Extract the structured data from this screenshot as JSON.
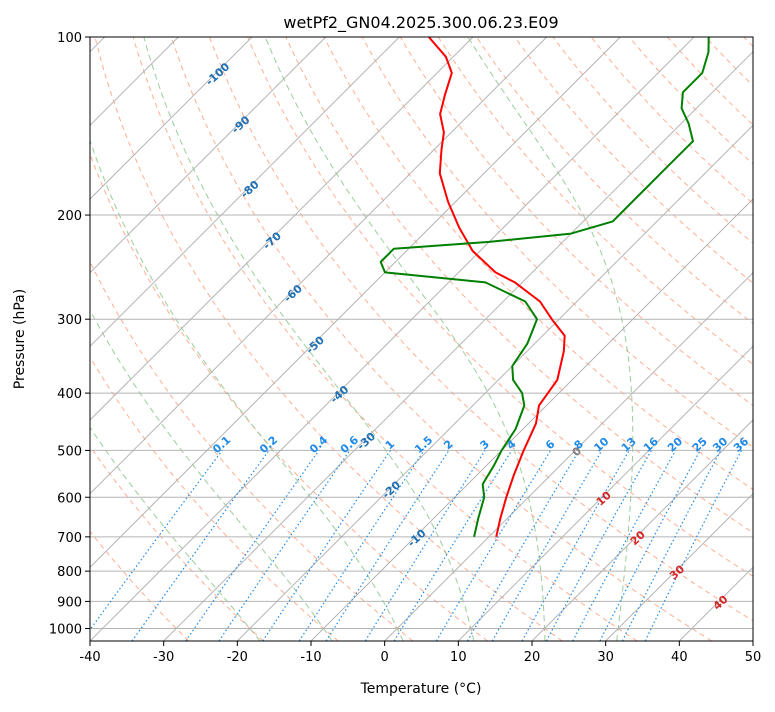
{
  "chart_data": {
    "type": "line",
    "subtype": "skew-t log-p diagram",
    "title": "wetPf2_GN04.2025.300.06.23.E09",
    "xlabel": "Temperature (°C)",
    "ylabel": "Pressure (hPa)",
    "xlim": [
      -40,
      50
    ],
    "ylim": [
      1050,
      100
    ],
    "xticks": [
      "-40",
      "-30",
      "-20",
      "-10",
      "0",
      "10",
      "20",
      "30",
      "40",
      "50"
    ],
    "yticks": [
      "100",
      "200",
      "300",
      "400",
      "500",
      "600",
      "700",
      "800",
      "900",
      "1000"
    ],
    "series": [
      {
        "name": "temperature",
        "color": "#ff0000",
        "points": [
          {
            "p": 700,
            "t": 1
          },
          {
            "p": 650,
            "t": -1
          },
          {
            "p": 600,
            "t": -3
          },
          {
            "p": 550,
            "t": -5
          },
          {
            "p": 500,
            "t": -7
          },
          {
            "p": 450,
            "t": -9
          },
          {
            "p": 420,
            "t": -11
          },
          {
            "p": 380,
            "t": -12
          },
          {
            "p": 340,
            "t": -15
          },
          {
            "p": 320,
            "t": -17
          },
          {
            "p": 300,
            "t": -21
          },
          {
            "p": 280,
            "t": -25
          },
          {
            "p": 260,
            "t": -31
          },
          {
            "p": 250,
            "t": -35
          },
          {
            "p": 230,
            "t": -41
          },
          {
            "p": 210,
            "t": -46
          },
          {
            "p": 190,
            "t": -51
          },
          {
            "p": 170,
            "t": -56
          },
          {
            "p": 155,
            "t": -59
          },
          {
            "p": 145,
            "t": -61
          },
          {
            "p": 135,
            "t": -64
          },
          {
            "p": 125,
            "t": -66
          },
          {
            "p": 115,
            "t": -68
          },
          {
            "p": 108,
            "t": -71
          },
          {
            "p": 100,
            "t": -76
          }
        ]
      },
      {
        "name": "dewpoint",
        "color": "#008000",
        "points": [
          {
            "p": 700,
            "t": -2
          },
          {
            "p": 650,
            "t": -4
          },
          {
            "p": 600,
            "t": -6
          },
          {
            "p": 570,
            "t": -8
          },
          {
            "p": 530,
            "t": -9
          },
          {
            "p": 500,
            "t": -10
          },
          {
            "p": 460,
            "t": -11
          },
          {
            "p": 420,
            "t": -13
          },
          {
            "p": 400,
            "t": -15
          },
          {
            "p": 380,
            "t": -18
          },
          {
            "p": 360,
            "t": -20
          },
          {
            "p": 330,
            "t": -21
          },
          {
            "p": 300,
            "t": -23
          },
          {
            "p": 280,
            "t": -27
          },
          {
            "p": 260,
            "t": -35
          },
          {
            "p": 250,
            "t": -50
          },
          {
            "p": 240,
            "t": -52
          },
          {
            "p": 228,
            "t": -52
          },
          {
            "p": 222,
            "t": -40
          },
          {
            "p": 215,
            "t": -30
          },
          {
            "p": 205,
            "t": -26
          },
          {
            "p": 195,
            "t": -26
          },
          {
            "p": 180,
            "t": -26
          },
          {
            "p": 165,
            "t": -26
          },
          {
            "p": 150,
            "t": -26
          },
          {
            "p": 140,
            "t": -29
          },
          {
            "p": 132,
            "t": -32
          },
          {
            "p": 124,
            "t": -34
          },
          {
            "p": 115,
            "t": -34
          },
          {
            "p": 106,
            "t": -36
          },
          {
            "p": 100,
            "t": -38
          }
        ]
      }
    ],
    "isotherms": [
      -160,
      -150,
      -140,
      -130,
      -120,
      -110,
      -100,
      -90,
      -80,
      -70,
      -60,
      -50,
      -40,
      -30,
      -20,
      -10,
      0,
      10,
      20,
      30,
      40,
      50
    ],
    "isotherm_labels": [
      "-100",
      "-90",
      "-80",
      "-70",
      "-60",
      "-50",
      "-40",
      "-30",
      "-20",
      "-10"
    ],
    "mixing_ratios": [
      "0.1",
      "0.2",
      "0.4",
      "0.6",
      "1",
      "1.5",
      "2",
      "3",
      "4",
      "6",
      "8",
      "10",
      "13",
      "16",
      "20",
      "25",
      "30",
      "36"
    ],
    "mixing_ratio_values": [
      0.1,
      0.2,
      0.4,
      0.6,
      1,
      1.5,
      2,
      3,
      4,
      6,
      8,
      10,
      13,
      16,
      20,
      25,
      30,
      36
    ],
    "isotherm_labels_warm": [
      "0",
      "10",
      "20",
      "30",
      "40"
    ],
    "dry_adiabats_c": [
      -30,
      -20,
      -10,
      0,
      10,
      20,
      30,
      40,
      50,
      60,
      70,
      80,
      90,
      100,
      110,
      120,
      130,
      140,
      150,
      160,
      170,
      180,
      190,
      200
    ],
    "moist_adiabats_c": [
      -20,
      -10,
      0,
      10,
      20,
      30
    ],
    "colors": {
      "isotherm": "#b4b4b4",
      "isobar": "#b4b4b4",
      "isotherm_label_cold": "#1f6fb4",
      "isotherm_label_zero": "#808080",
      "isotherm_label_warm": "#d62728",
      "mixing_ratio": "#1f8ae8",
      "dry_adiabat": "#ffa080",
      "moist_adiabat": "#90c890",
      "freezing_curve": "#d2b48c"
    }
  }
}
